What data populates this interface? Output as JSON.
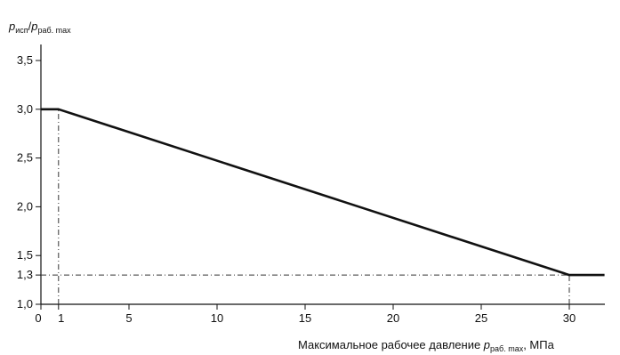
{
  "chart_data": {
    "type": "line",
    "ylabel": {
      "main": "p",
      "sub1": "исп",
      "slash": "/",
      "sub2_main": "p",
      "sub2": "раб. max"
    },
    "xlabel": {
      "text": "Максимальное рабочее давление ",
      "var": "p",
      "sub": "раб. max",
      "unit": ", МПа"
    },
    "x_ticks": [
      {
        "value": 0,
        "label": "0"
      },
      {
        "value": 1,
        "label": "1"
      },
      {
        "value": 5,
        "label": "5"
      },
      {
        "value": 10,
        "label": "10"
      },
      {
        "value": 15,
        "label": "15"
      },
      {
        "value": 20,
        "label": "20"
      },
      {
        "value": 25,
        "label": "25"
      },
      {
        "value": 30,
        "label": "30"
      }
    ],
    "y_ticks": [
      {
        "value": 1.0,
        "label": "1,0"
      },
      {
        "value": 1.3,
        "label": "1,3"
      },
      {
        "value": 1.5,
        "label": "1,5"
      },
      {
        "value": 2.0,
        "label": "2,0"
      },
      {
        "value": 2.5,
        "label": "2,5"
      },
      {
        "value": 3.0,
        "label": "3,0"
      },
      {
        "value": 3.5,
        "label": "3,5"
      }
    ],
    "xlim": [
      0,
      33
    ],
    "ylim": [
      1.0,
      3.75
    ],
    "series": [
      {
        "x": [
          0,
          1,
          30,
          32
        ],
        "y": [
          3.0,
          3.0,
          1.3,
          1.3
        ]
      }
    ],
    "reference_lines": [
      {
        "type": "vertical",
        "x": 1,
        "y_from": 1.0,
        "y_to": 3.0
      },
      {
        "type": "horizontal",
        "y": 1.3,
        "x_from": 0,
        "x_to": 30
      },
      {
        "type": "vertical",
        "x": 30,
        "y_from": 1.0,
        "y_to": 1.3
      }
    ],
    "grid": false,
    "legend": "none"
  }
}
